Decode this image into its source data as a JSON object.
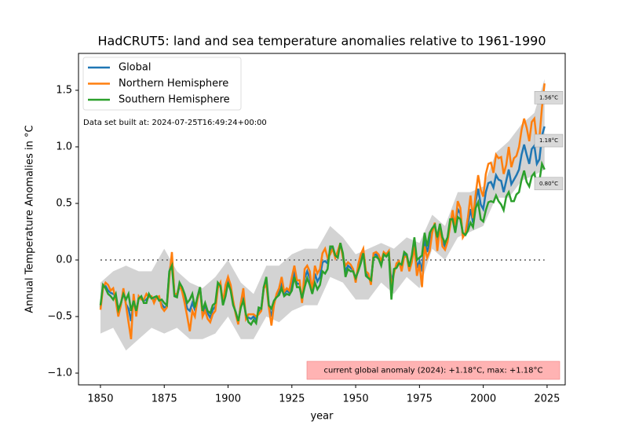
{
  "chart_data": {
    "type": "line",
    "title": "HadCRUT5: land and sea temperature anomalies relative to 1961-1990",
    "x_label": "year",
    "y_label": "Annual Temperature Anomalies in °C",
    "build_note": "Data set built at: 2024-07-25T16:49:24+00:00",
    "footer_note": "current global anomaly (2024): +1.18°C, max: +1.18°C",
    "legend": "upper left",
    "grid": false,
    "hline": 0,
    "xlim": [
      1841.4,
      2032.1
    ],
    "ylim": [
      -1.104,
      1.826
    ],
    "xticks": [
      1850,
      1875,
      1900,
      1925,
      1950,
      1975,
      2000,
      2025
    ],
    "yticks": [
      {
        "value": -1.0,
        "label": "−1.0"
      },
      {
        "value": -0.5,
        "label": "−0.5"
      },
      {
        "value": 0.0,
        "label": "0.0"
      },
      {
        "value": 0.5,
        "label": "0.5"
      },
      {
        "value": 1.0,
        "label": "1.0"
      },
      {
        "value": 1.5,
        "label": "1.5"
      }
    ],
    "x": [
      1850,
      1851,
      1852,
      1853,
      1854,
      1855,
      1856,
      1857,
      1858,
      1859,
      1860,
      1861,
      1862,
      1863,
      1864,
      1865,
      1866,
      1867,
      1868,
      1869,
      1870,
      1871,
      1872,
      1873,
      1874,
      1875,
      1876,
      1877,
      1878,
      1879,
      1880,
      1881,
      1882,
      1883,
      1884,
      1885,
      1886,
      1887,
      1888,
      1889,
      1890,
      1891,
      1892,
      1893,
      1894,
      1895,
      1896,
      1897,
      1898,
      1899,
      1900,
      1901,
      1902,
      1903,
      1904,
      1905,
      1906,
      1907,
      1908,
      1909,
      1910,
      1911,
      1912,
      1913,
      1914,
      1915,
      1916,
      1917,
      1918,
      1919,
      1920,
      1921,
      1922,
      1923,
      1924,
      1925,
      1926,
      1927,
      1928,
      1929,
      1930,
      1931,
      1932,
      1933,
      1934,
      1935,
      1936,
      1937,
      1938,
      1939,
      1940,
      1941,
      1942,
      1943,
      1944,
      1945,
      1946,
      1947,
      1948,
      1949,
      1950,
      1951,
      1952,
      1953,
      1954,
      1955,
      1956,
      1957,
      1958,
      1959,
      1960,
      1961,
      1962,
      1963,
      1964,
      1965,
      1966,
      1967,
      1968,
      1969,
      1970,
      1971,
      1972,
      1973,
      1974,
      1975,
      1976,
      1977,
      1978,
      1979,
      1980,
      1981,
      1982,
      1983,
      1984,
      1985,
      1986,
      1987,
      1988,
      1989,
      1990,
      1991,
      1992,
      1993,
      1994,
      1995,
      1996,
      1997,
      1998,
      1999,
      2000,
      2001,
      2002,
      2003,
      2004,
      2005,
      2006,
      2007,
      2008,
      2009,
      2010,
      2011,
      2012,
      2013,
      2014,
      2015,
      2016,
      2017,
      2018,
      2019,
      2020,
      2021,
      2022,
      2023,
      2024
    ],
    "band": {
      "color": "#d3d3d3",
      "x": [
        1850,
        1855,
        1860,
        1865,
        1870,
        1875,
        1880,
        1885,
        1890,
        1895,
        1900,
        1905,
        1910,
        1915,
        1920,
        1925,
        1930,
        1935,
        1940,
        1945,
        1950,
        1955,
        1960,
        1965,
        1970,
        1975,
        1980,
        1985,
        1990,
        1995,
        2000,
        2005,
        2010,
        2015,
        2020,
        2024
      ],
      "lower": [
        -0.65,
        -0.6,
        -0.8,
        -0.7,
        -0.6,
        -0.65,
        -0.6,
        -0.7,
        -0.7,
        -0.65,
        -0.5,
        -0.7,
        -0.7,
        -0.5,
        -0.55,
        -0.45,
        -0.4,
        -0.4,
        -0.15,
        -0.2,
        -0.35,
        -0.35,
        -0.2,
        -0.3,
        -0.15,
        -0.25,
        0.1,
        0.0,
        0.2,
        0.25,
        0.3,
        0.55,
        0.55,
        0.7,
        0.75,
        0.8
      ],
      "upper": [
        -0.2,
        -0.1,
        -0.05,
        -0.1,
        -0.1,
        0.1,
        -0.1,
        -0.2,
        -0.25,
        -0.15,
        0.0,
        -0.2,
        -0.3,
        -0.05,
        -0.05,
        0.05,
        0.1,
        0.1,
        0.3,
        0.2,
        0.05,
        0.1,
        0.15,
        0.1,
        0.2,
        0.15,
        0.4,
        0.3,
        0.6,
        0.6,
        0.65,
        0.95,
        1.05,
        1.2,
        1.3,
        1.6
      ]
    },
    "series": [
      {
        "name": "Global",
        "color": "#1f77b4",
        "end_label": "1.18°C",
        "values": [
          -0.42,
          -0.23,
          -0.23,
          -0.27,
          -0.29,
          -0.3,
          -0.32,
          -0.47,
          -0.39,
          -0.28,
          -0.39,
          -0.43,
          -0.54,
          -0.34,
          -0.47,
          -0.33,
          -0.34,
          -0.36,
          -0.35,
          -0.32,
          -0.33,
          -0.36,
          -0.33,
          -0.34,
          -0.39,
          -0.42,
          -0.41,
          -0.11,
          0.01,
          -0.3,
          -0.32,
          -0.23,
          -0.26,
          -0.34,
          -0.43,
          -0.45,
          -0.38,
          -0.44,
          -0.33,
          -0.24,
          -0.47,
          -0.4,
          -0.47,
          -0.51,
          -0.44,
          -0.41,
          -0.22,
          -0.21,
          -0.39,
          -0.27,
          -0.17,
          -0.24,
          -0.38,
          -0.47,
          -0.55,
          -0.4,
          -0.31,
          -0.5,
          -0.51,
          -0.52,
          -0.5,
          -0.53,
          -0.45,
          -0.44,
          -0.24,
          -0.18,
          -0.41,
          -0.5,
          -0.38,
          -0.31,
          -0.28,
          -0.2,
          -0.3,
          -0.27,
          -0.29,
          -0.21,
          -0.1,
          -0.21,
          -0.21,
          -0.36,
          -0.16,
          -0.1,
          -0.16,
          -0.29,
          -0.12,
          -0.19,
          -0.15,
          -0.02,
          -0.01,
          -0.03,
          0.09,
          0.11,
          0.03,
          0.05,
          0.15,
          0.04,
          -0.1,
          -0.05,
          -0.07,
          -0.09,
          -0.18,
          -0.07,
          0.01,
          0.08,
          -0.12,
          -0.14,
          -0.2,
          0.04,
          0.05,
          0.03,
          -0.03,
          0.06,
          0.04,
          0.07,
          -0.2,
          -0.1,
          -0.05,
          -0.02,
          -0.07,
          0.05,
          0.04,
          -0.08,
          0.01,
          0.16,
          -0.07,
          -0.01,
          -0.1,
          0.18,
          0.07,
          0.16,
          0.26,
          0.32,
          0.14,
          0.31,
          0.16,
          0.12,
          0.18,
          0.33,
          0.4,
          0.27,
          0.45,
          0.41,
          0.22,
          0.23,
          0.32,
          0.45,
          0.33,
          0.52,
          0.63,
          0.49,
          0.45,
          0.6,
          0.68,
          0.69,
          0.64,
          0.75,
          0.71,
          0.7,
          0.6,
          0.7,
          0.8,
          0.67,
          0.71,
          0.75,
          0.8,
          0.93,
          1.02,
          0.93,
          0.85,
          0.98,
          1.01,
          0.85,
          0.89,
          1.1,
          1.18
        ]
      },
      {
        "name": "Northern Hemisphere",
        "color": "#ff7f0e",
        "end_label": "1.56°C",
        "values": [
          -0.44,
          -0.25,
          -0.2,
          -0.22,
          -0.27,
          -0.25,
          -0.36,
          -0.5,
          -0.4,
          -0.25,
          -0.4,
          -0.55,
          -0.7,
          -0.3,
          -0.5,
          -0.32,
          -0.35,
          -0.35,
          -0.3,
          -0.33,
          -0.32,
          -0.38,
          -0.33,
          -0.32,
          -0.42,
          -0.45,
          -0.42,
          -0.15,
          0.07,
          -0.3,
          -0.3,
          -0.22,
          -0.28,
          -0.38,
          -0.5,
          -0.63,
          -0.45,
          -0.5,
          -0.35,
          -0.24,
          -0.5,
          -0.45,
          -0.52,
          -0.55,
          -0.48,
          -0.45,
          -0.25,
          -0.2,
          -0.38,
          -0.22,
          -0.15,
          -0.22,
          -0.36,
          -0.48,
          -0.57,
          -0.38,
          -0.25,
          -0.52,
          -0.48,
          -0.48,
          -0.48,
          -0.5,
          -0.48,
          -0.45,
          -0.25,
          -0.22,
          -0.42,
          -0.58,
          -0.4,
          -0.3,
          -0.25,
          -0.15,
          -0.28,
          -0.25,
          -0.27,
          -0.15,
          -0.05,
          -0.18,
          -0.18,
          -0.38,
          -0.08,
          -0.05,
          -0.1,
          -0.28,
          -0.05,
          -0.12,
          -0.08,
          0.06,
          0.1,
          0.02,
          0.05,
          0.1,
          0.02,
          0.08,
          0.15,
          0.02,
          -0.05,
          -0.02,
          -0.04,
          -0.08,
          -0.2,
          -0.04,
          0.05,
          0.1,
          -0.1,
          -0.12,
          -0.22,
          0.06,
          0.07,
          0.05,
          -0.01,
          0.07,
          0.05,
          0.08,
          -0.25,
          -0.12,
          -0.03,
          -0.01,
          -0.1,
          0.03,
          0.03,
          -0.1,
          -0.02,
          0.12,
          -0.14,
          -0.04,
          -0.24,
          0.12,
          0.02,
          0.08,
          0.24,
          0.33,
          0.08,
          0.3,
          0.12,
          0.09,
          0.16,
          0.3,
          0.44,
          0.3,
          0.52,
          0.46,
          0.2,
          0.24,
          0.38,
          0.57,
          0.37,
          0.58,
          0.75,
          0.62,
          0.56,
          0.76,
          0.85,
          0.86,
          0.77,
          0.93,
          0.9,
          0.91,
          0.76,
          0.84,
          1.0,
          0.82,
          0.9,
          0.92,
          1.0,
          1.15,
          1.25,
          1.17,
          1.05,
          1.22,
          1.25,
          1.05,
          1.08,
          1.35,
          1.56
        ]
      },
      {
        "name": "Southern Hemisphere",
        "color": "#2ca02c",
        "end_label": "0.80°C",
        "values": [
          -0.4,
          -0.22,
          -0.25,
          -0.3,
          -0.32,
          -0.35,
          -0.3,
          -0.44,
          -0.38,
          -0.3,
          -0.35,
          -0.3,
          -0.45,
          -0.36,
          -0.45,
          -0.34,
          -0.32,
          -0.38,
          -0.38,
          -0.3,
          -0.34,
          -0.33,
          -0.32,
          -0.36,
          -0.35,
          -0.38,
          -0.4,
          -0.1,
          -0.05,
          -0.32,
          -0.33,
          -0.2,
          -0.24,
          -0.3,
          -0.38,
          -0.35,
          -0.3,
          -0.42,
          -0.33,
          -0.24,
          -0.45,
          -0.38,
          -0.45,
          -0.47,
          -0.4,
          -0.38,
          -0.2,
          -0.23,
          -0.4,
          -0.32,
          -0.2,
          -0.27,
          -0.4,
          -0.46,
          -0.54,
          -0.42,
          -0.36,
          -0.48,
          -0.55,
          -0.57,
          -0.53,
          -0.56,
          -0.42,
          -0.43,
          -0.24,
          -0.15,
          -0.4,
          -0.43,
          -0.36,
          -0.33,
          -0.31,
          -0.25,
          -0.32,
          -0.3,
          -0.31,
          -0.27,
          -0.15,
          -0.24,
          -0.24,
          -0.34,
          -0.24,
          -0.16,
          -0.22,
          -0.3,
          -0.2,
          -0.26,
          -0.22,
          -0.1,
          -0.12,
          -0.08,
          0.12,
          0.12,
          0.04,
          0.02,
          0.15,
          0.06,
          -0.15,
          -0.08,
          -0.1,
          -0.1,
          -0.16,
          -0.1,
          -0.03,
          0.06,
          -0.14,
          -0.16,
          -0.18,
          0.02,
          0.03,
          0.01,
          -0.05,
          0.05,
          0.03,
          0.06,
          -0.35,
          -0.08,
          -0.07,
          -0.03,
          -0.04,
          0.07,
          0.05,
          -0.06,
          0.04,
          0.2,
          0.0,
          0.02,
          0.04,
          0.24,
          0.12,
          0.24,
          0.28,
          0.31,
          0.2,
          0.32,
          0.2,
          0.15,
          0.2,
          0.36,
          0.36,
          0.24,
          0.38,
          0.36,
          0.24,
          0.22,
          0.26,
          0.33,
          0.29,
          0.46,
          0.51,
          0.36,
          0.34,
          0.44,
          0.51,
          0.52,
          0.51,
          0.57,
          0.52,
          0.49,
          0.44,
          0.56,
          0.6,
          0.52,
          0.52,
          0.58,
          0.6,
          0.71,
          0.79,
          0.69,
          0.65,
          0.74,
          0.77,
          0.65,
          0.7,
          0.85,
          0.8
        ]
      }
    ]
  }
}
